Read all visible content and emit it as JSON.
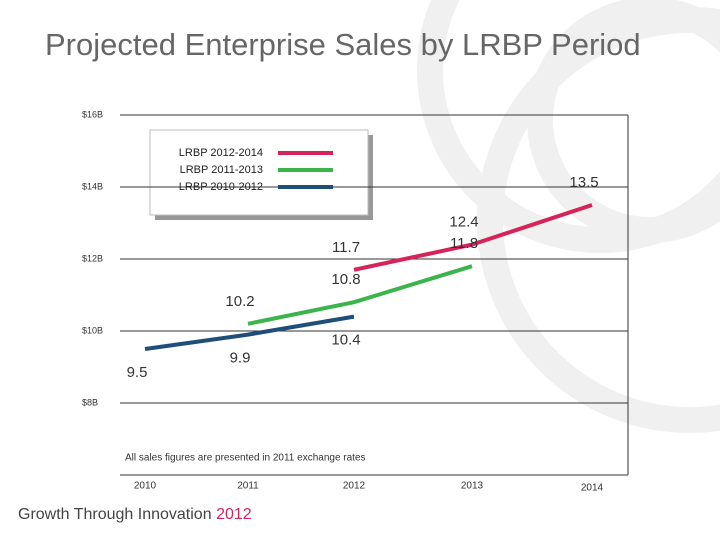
{
  "chart_data": {
    "type": "line",
    "title": "Projected Enterprise Sales by LRBP Period",
    "categories": [
      "2010",
      "2011",
      "2012",
      "2013",
      "2014"
    ],
    "series": [
      {
        "name": "LRBP 2012-2014",
        "color": "#d6245a",
        "values": [
          null,
          null,
          11.7,
          12.4,
          13.5
        ]
      },
      {
        "name": "LRBP 2011-2013",
        "color": "#3cb44b",
        "values": [
          null,
          10.2,
          10.8,
          11.8,
          null
        ]
      },
      {
        "name": "LRBP 2010-2012",
        "color": "#1f4e79",
        "values": [
          9.5,
          9.9,
          10.4,
          null,
          null
        ]
      }
    ],
    "ylim": [
      6,
      16
    ],
    "yticks": [
      {
        "value": 8,
        "label": "$8B"
      },
      {
        "value": 10,
        "label": "$10B"
      },
      {
        "value": 12,
        "label": "$12B"
      },
      {
        "value": 14,
        "label": "$14B"
      },
      {
        "value": 16,
        "label": "$16B"
      }
    ],
    "grid": true,
    "annotation": "All sales figures are presented in 2011 exchange rates",
    "footer": {
      "text": "Growth Through Innovation",
      "year": "2012"
    }
  }
}
